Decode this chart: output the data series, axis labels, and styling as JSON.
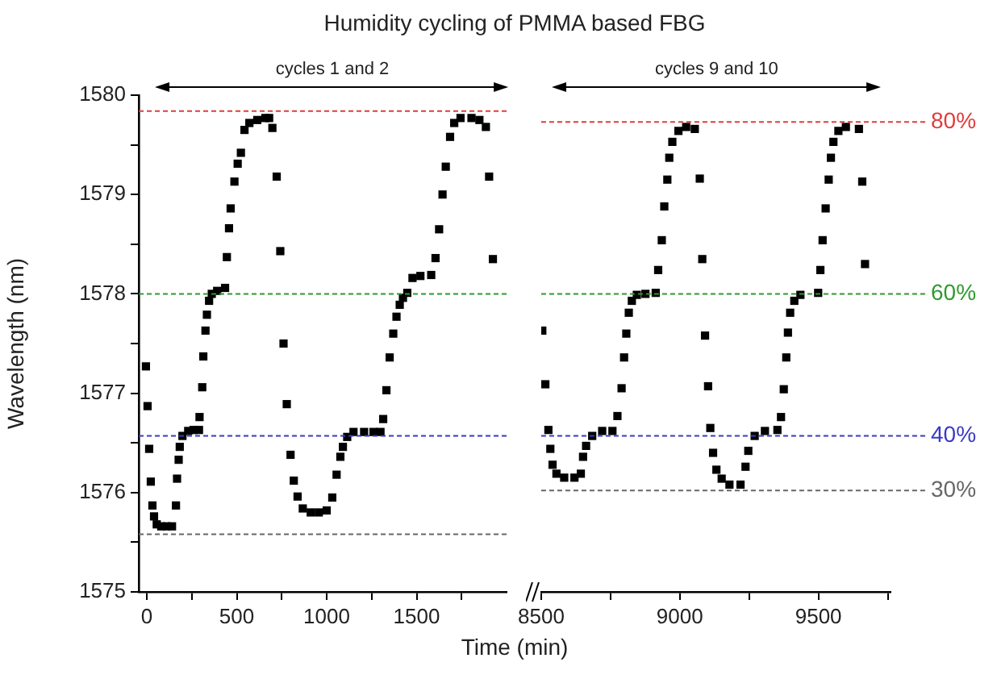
{
  "chart_data": [
    {
      "type": "scatter",
      "title": "Humidity cycling of PMMA based FBG",
      "xlabel": "Time (min)",
      "ylabel": "Wavelength (nm)",
      "marker": "square",
      "grid": false,
      "legend": false,
      "xlim": [
        -45,
        2000
      ],
      "xticks": [
        0,
        {
          "value": 250,
          "label": null
        },
        500,
        {
          "value": 750,
          "label": null
        },
        1000,
        {
          "value": 1250,
          "label": null
        },
        1500,
        {
          "value": 1750,
          "label": null
        }
      ],
      "ylim": [
        1575,
        1580
      ],
      "yticks": [
        1575,
        {
          "value": 1575.5,
          "label": null
        },
        1576,
        {
          "value": 1576.5,
          "label": null
        },
        1577,
        {
          "value": 1577.5,
          "label": null
        },
        1578,
        {
          "value": 1578.5,
          "label": null
        },
        1579,
        {
          "value": 1579.5,
          "label": null
        },
        1580
      ],
      "annotations": [
        "cycles 1 and 2"
      ],
      "ref_lines": [
        {
          "axis": "y",
          "value": 1579.84,
          "color": "#e03c3c",
          "line_style": "dashed"
        },
        {
          "axis": "y",
          "value": 1578.0,
          "color": "#2e9a2e",
          "line_style": "dashed"
        },
        {
          "axis": "y",
          "value": 1576.57,
          "color": "#3a3ac4",
          "line_style": "dashed"
        },
        {
          "axis": "y",
          "value": 1575.58,
          "color": "#666666",
          "line_style": "dashed"
        }
      ],
      "series": [
        {
          "color": "#000000",
          "x": [
            -5,
            4,
            13,
            22,
            31,
            40,
            55,
            80,
            110,
            140,
            162,
            168,
            177,
            183,
            198,
            230,
            260,
            290,
            293,
            308,
            314,
            326,
            334,
            346,
            361,
            391,
            435,
            445,
            457,
            466,
            487,
            505,
            523,
            543,
            570,
            614,
            659,
            680,
            698,
            722,
            742,
            760,
            778,
            799,
            817,
            838,
            867,
            911,
            956,
            1000,
            1031,
            1055,
            1076,
            1090,
            1114,
            1149,
            1208,
            1260,
            1299,
            1314,
            1332,
            1350,
            1370,
            1388,
            1406,
            1424,
            1448,
            1477,
            1521,
            1581,
            1605,
            1625,
            1644,
            1662,
            1686,
            1709,
            1744,
            1805,
            1849,
            1885,
            1903,
            1924
          ],
          "values": [
            1577.27,
            1576.87,
            1576.44,
            1576.11,
            1575.87,
            1575.76,
            1575.68,
            1575.66,
            1575.66,
            1575.66,
            1575.87,
            1576.14,
            1576.33,
            1576.46,
            1576.57,
            1576.62,
            1576.63,
            1576.63,
            1576.76,
            1577.06,
            1577.37,
            1577.63,
            1577.79,
            1577.93,
            1578.0,
            1578.03,
            1578.06,
            1578.37,
            1578.66,
            1578.86,
            1579.13,
            1579.31,
            1579.42,
            1579.65,
            1579.72,
            1579.75,
            1579.77,
            1579.77,
            1579.67,
            1579.18,
            1578.43,
            1577.5,
            1576.89,
            1576.38,
            1576.12,
            1575.96,
            1575.84,
            1575.8,
            1575.8,
            1575.82,
            1575.95,
            1576.18,
            1576.36,
            1576.46,
            1576.56,
            1576.61,
            1576.61,
            1576.61,
            1576.61,
            1576.74,
            1577.03,
            1577.36,
            1577.6,
            1577.77,
            1577.89,
            1577.96,
            1578.01,
            1578.16,
            1578.18,
            1578.19,
            1578.36,
            1578.65,
            1579.0,
            1579.28,
            1579.58,
            1579.72,
            1579.77,
            1579.77,
            1579.75,
            1579.68,
            1579.18,
            1578.35
          ]
        }
      ]
    },
    {
      "type": "scatter",
      "marker": "square",
      "grid": false,
      "legend": false,
      "tick_labels": "x",
      "xlim": [
        8500,
        9760
      ],
      "xticks": [
        8500,
        {
          "value": 8750,
          "label": null
        },
        9000,
        {
          "value": 9250,
          "label": null
        },
        9500,
        {
          "value": 9750,
          "label": null
        }
      ],
      "ylim": [
        1575,
        1580
      ],
      "annotations": [
        "cycles 9 and 10",
        "80%",
        "60%",
        "40%",
        "30%"
      ],
      "ref_lines": [
        {
          "axis": "y",
          "value": 1579.73,
          "color": "#e03c3c",
          "line_style": "dashed"
        },
        {
          "axis": "y",
          "value": 1578.0,
          "color": "#2e9a2e",
          "line_style": "dashed"
        },
        {
          "axis": "y",
          "value": 1576.57,
          "color": "#3a3ac4",
          "line_style": "dashed"
        },
        {
          "axis": "y",
          "value": 1576.02,
          "color": "#666666",
          "line_style": "dashed"
        }
      ],
      "series": [
        {
          "color": "#000000",
          "x": [
            8504,
            8515,
            8526,
            8533,
            8541,
            8555,
            8583,
            8620,
            8643,
            8651,
            8662,
            8684,
            8720,
            8757,
            8775,
            8790,
            8799,
            8807,
            8816,
            8827,
            8845,
            8876,
            8913,
            8922,
            8935,
            8944,
            8955,
            8962,
            8973,
            8995,
            9023,
            9054,
            9072,
            9081,
            9091,
            9102,
            9110,
            9120,
            9132,
            9151,
            9179,
            9219,
            9237,
            9247,
            9270,
            9307,
            9352,
            9365,
            9375,
            9384,
            9390,
            9398,
            9413,
            9435,
            9499,
            9507,
            9515,
            9526,
            9537,
            9545,
            9554,
            9572,
            9599,
            9646,
            9658,
            9668
          ],
          "values": [
            1577.63,
            1577.09,
            1576.63,
            1576.44,
            1576.28,
            1576.19,
            1576.15,
            1576.15,
            1576.19,
            1576.36,
            1576.47,
            1576.57,
            1576.62,
            1576.62,
            1576.77,
            1577.05,
            1577.36,
            1577.6,
            1577.81,
            1577.93,
            1577.99,
            1578.0,
            1578.01,
            1578.24,
            1578.54,
            1578.88,
            1579.15,
            1579.37,
            1579.53,
            1579.64,
            1579.68,
            1579.66,
            1579.16,
            1578.35,
            1577.58,
            1577.07,
            1576.65,
            1576.4,
            1576.23,
            1576.14,
            1576.08,
            1576.08,
            1576.26,
            1576.42,
            1576.57,
            1576.62,
            1576.63,
            1576.76,
            1577.04,
            1577.36,
            1577.61,
            1577.81,
            1577.93,
            1577.99,
            1578.01,
            1578.24,
            1578.54,
            1578.86,
            1579.15,
            1579.37,
            1579.53,
            1579.64,
            1579.68,
            1579.66,
            1579.13,
            1578.3
          ]
        }
      ]
    }
  ]
}
